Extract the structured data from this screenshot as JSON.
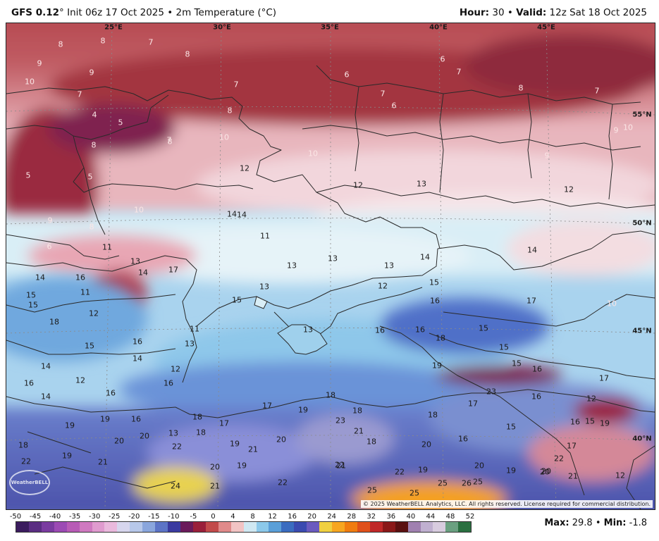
{
  "header": {
    "model": "GFS 0.12",
    "degree": "°",
    "init": " Init 06z 17 Oct 2025",
    "sep": " • ",
    "field": "2m Temperature (°C)",
    "hour_label": "Hour:",
    "hour": " 30",
    "valid_label": "Valid:",
    "valid": " 12z Sat 18 Oct 2025"
  },
  "map": {
    "lon_labels": [
      "25°E",
      "30°E",
      "35°E",
      "40°E",
      "45°E"
    ],
    "lat_labels": [
      "55°N",
      "50°N",
      "45°N",
      "40°N"
    ],
    "copyright": "© 2025 WeatherBELL Analytics, LLC. All rights reserved. License required for commercial distribution.",
    "logo_text": "WeatherBELL",
    "temperature_values": [
      "8",
      "8",
      "7",
      "8",
      "9",
      "9",
      "10",
      "7",
      "7",
      "6",
      "6",
      "7",
      "7",
      "6",
      "8",
      "7",
      "4",
      "5",
      "8",
      "7",
      "8",
      "10",
      "8",
      "9",
      "10",
      "10",
      "12",
      "9",
      "12",
      "12",
      "13",
      "5",
      "5",
      "10",
      "14",
      "14",
      "11",
      "9",
      "8",
      "6",
      "11",
      "13",
      "13",
      "13",
      "13",
      "14",
      "14",
      "12",
      "15",
      "14",
      "17",
      "16",
      "14",
      "15",
      "13",
      "15",
      "16",
      "11",
      "15",
      "12",
      "18",
      "17",
      "10",
      "11",
      "13",
      "16",
      "13",
      "16",
      "18",
      "15",
      "15",
      "16",
      "14",
      "15",
      "16",
      "14",
      "12",
      "12",
      "19",
      "15",
      "16",
      "16",
      "23",
      "16",
      "17",
      "16",
      "14",
      "13",
      "18",
      "17",
      "19",
      "18",
      "19",
      "16",
      "12",
      "18",
      "23",
      "21",
      "18",
      "17",
      "15",
      "19",
      "18",
      "20",
      "20",
      "17",
      "19",
      "18",
      "20",
      "16",
      "16",
      "19",
      "15",
      "20",
      "21",
      "18",
      "22",
      "19",
      "21",
      "22",
      "22",
      "19",
      "12",
      "20",
      "20",
      "20",
      "19",
      "19",
      "21",
      "22",
      "24",
      "21",
      "22",
      "25",
      "25",
      "25",
      "26",
      "25",
      "20",
      "21",
      "17",
      "22"
    ],
    "palette": {
      "cold_sea": "#8fc4e8",
      "warm_sea": "#6a7fcc",
      "land_north": "#b5474f",
      "land_mid": "#e7b0b8",
      "land_pale": "#f3dde1",
      "land_south": "#4a5fb8",
      "hot": "#f0a020",
      "border": "#2a2a2a"
    }
  },
  "colorbar": {
    "ticks": [
      "-50",
      "-45",
      "-40",
      "-35",
      "-30",
      "-25",
      "-20",
      "-15",
      "-10",
      "-5",
      "0",
      "4",
      "8",
      "12",
      "16",
      "20",
      "24",
      "28",
      "32",
      "36",
      "40",
      "44",
      "48",
      "52"
    ],
    "colors": [
      "#3b1c5e",
      "#5a2d82",
      "#7a3ba0",
      "#9c4ab4",
      "#b85bb6",
      "#cf79c0",
      "#e09bcf",
      "#eab9dd",
      "#d7d6ee",
      "#b7c8ea",
      "#8aa6dd",
      "#5c74c6",
      "#3a3aa0",
      "#6a1a5a",
      "#9a1f3a",
      "#c24a4a",
      "#e08a8a",
      "#f2c4c4",
      "#cfe8f2",
      "#8cc9ea",
      "#5a9fd8",
      "#3a6cc0",
      "#3a4ab0",
      "#6a5abf",
      "#f0d040",
      "#f7a620",
      "#f07c10",
      "#e0501a",
      "#c02828",
      "#8a1818",
      "#5a1010",
      "#a080b0",
      "#c0b0d0",
      "#d8ccdf",
      "#6aa080",
      "#2a7040"
    ],
    "max_label": "Max:",
    "max": " 29.8",
    "sep": " • ",
    "min_label": "Min:",
    "min": " -1.8"
  }
}
